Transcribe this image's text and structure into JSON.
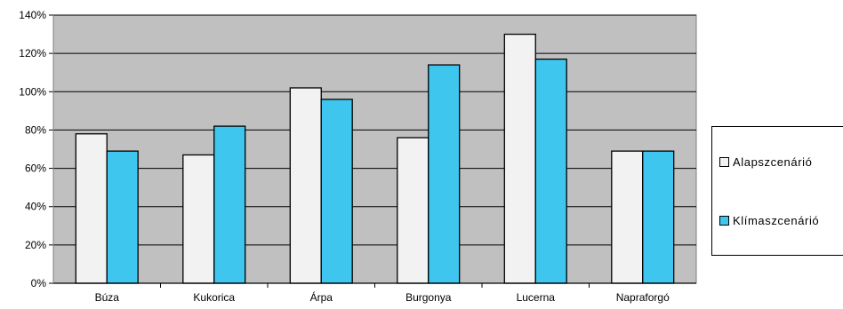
{
  "chart_data": {
    "type": "bar",
    "categories": [
      "Búza",
      "Kukorica",
      "Árpa",
      "Burgonya",
      "Lucerna",
      "Napraforgó"
    ],
    "series": [
      {
        "name": "Alapszcenárió",
        "color": "#f2f2f2",
        "values": [
          78,
          67,
          102,
          76,
          130,
          69
        ]
      },
      {
        "name": "Klímaszcenárió",
        "color": "#3fc6ef",
        "values": [
          69,
          82,
          96,
          114,
          117,
          69
        ]
      }
    ],
    "yticks": [
      "0%",
      "20%",
      "40%",
      "60%",
      "80%",
      "100%",
      "120%",
      "140%"
    ],
    "ylim": [
      0,
      140
    ],
    "y_unit": "%",
    "grid": true,
    "plot_background": "#c0c0c0",
    "legend_position": "right"
  }
}
